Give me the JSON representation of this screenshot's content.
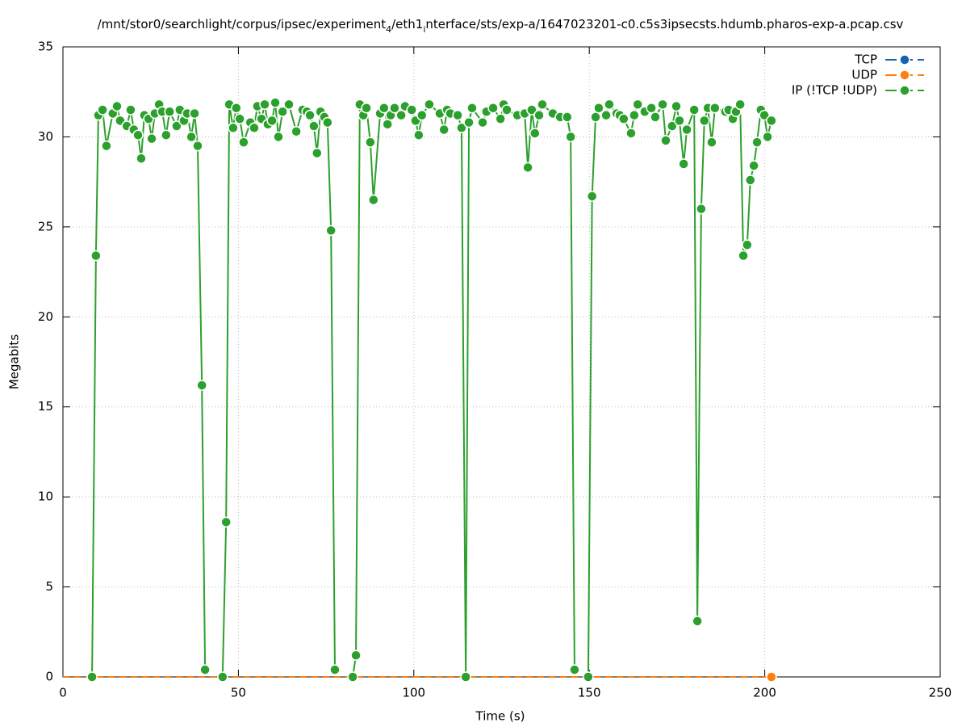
{
  "chart_data": {
    "type": "line",
    "title": [
      {
        "text": "/mnt/stor0/searchlight/corpus/ipsec/experiment",
        "sub": false
      },
      {
        "text": "4",
        "sub": true
      },
      {
        "text": "/eth1",
        "sub": false
      },
      {
        "text": "i",
        "sub": true
      },
      {
        "text": "nterface/sts/exp-a/1647023201-c0.c5s3ipsecsts.hdumb.pharos-exp-a.pcap.csv",
        "sub": false
      }
    ],
    "xlabel": "Time (s)",
    "ylabel": "Megabits",
    "xlim": [
      0,
      250
    ],
    "xticks": [
      0,
      50,
      100,
      150,
      200,
      250
    ],
    "ylim": [
      0,
      35
    ],
    "yticks": [
      0,
      5,
      10,
      15,
      20,
      25,
      30,
      35
    ],
    "grid": true,
    "legend": "top-right",
    "series": [
      {
        "name": "TCP",
        "color": "#1464b4",
        "dashed": true,
        "x": [
          0,
          201.9
        ],
        "values": [
          0,
          0
        ],
        "markers": "last"
      },
      {
        "name": "UDP",
        "color": "#ff7f0e",
        "dashed": true,
        "x": [
          0,
          201.9
        ],
        "values": [
          0,
          0
        ],
        "markers": "last"
      },
      {
        "name": "IP (!TCP  !UDP)",
        "color": "#2ca02c",
        "dashed": false,
        "markers": "all",
        "x": [
          8.3,
          9.4,
          10.1,
          11.3,
          12.4,
          14.2,
          15.4,
          16.3,
          18.2,
          19.3,
          20.2,
          21.4,
          22.3,
          23.2,
          24.4,
          25.3,
          26.2,
          27.4,
          28.3,
          29.4,
          30.4,
          32.4,
          33.3,
          34.5,
          35.4,
          36.6,
          37.5,
          38.4,
          39.6,
          40.5,
          null,
          45.5,
          46.5,
          47.4,
          48.5,
          49.4,
          50.4,
          51.5,
          53.4,
          54.5,
          55.4,
          56.6,
          57.5,
          58.4,
          59.6,
          60.5,
          61.4,
          62.6,
          64.4,
          66.5,
          68.3,
          69.5,
          70.4,
          71.5,
          72.4,
          73.4,
          74.5,
          75.4,
          76.4,
          77.5,
          null,
          82.6,
          83.5,
          84.6,
          85.6,
          86.5,
          87.6,
          88.5,
          90.4,
          91.5,
          92.5,
          93.4,
          94.5,
          96.4,
          97.5,
          99.4,
          100.5,
          101.4,
          102.3,
          104.4,
          107.4,
          108.6,
          109.5,
          110.4,
          112.5,
          113.6,
          114.8,
          115.7,
          116.6,
          119.6,
          120.7,
          122.6,
          124.7,
          125.6,
          126.5,
          129.5,
          131.6,
          132.5,
          133.6,
          134.5,
          135.7,
          136.6,
          139.6,
          141.7,
          143.7,
          144.7,
          145.8,
          null,
          149.7,
          150.8,
          151.8,
          152.7,
          154.8,
          155.7,
          157.8,
          158.7,
          159.8,
          161.9,
          162.8,
          163.8,
          165.8,
          167.7,
          168.8,
          170.9,
          171.8,
          173.6,
          174.8,
          175.7,
          176.9,
          177.8,
          179.9,
          180.8,
          181.9,
          182.8,
          183.8,
          184.9,
          185.8,
          188.8,
          189.7,
          190.9,
          191.8,
          193.0,
          193.9,
          195.0,
          195.9,
          196.9,
          197.8,
          198.9,
          199.9,
          200.8,
          201.9
        ],
        "values": [
          0,
          23.4,
          31.2,
          31.5,
          29.5,
          31.3,
          31.7,
          30.9,
          30.6,
          31.5,
          30.4,
          30.1,
          28.8,
          31.2,
          31.0,
          29.9,
          31.3,
          31.8,
          31.4,
          30.1,
          31.4,
          30.6,
          31.5,
          30.9,
          31.3,
          30.0,
          31.3,
          29.5,
          16.2,
          0.4,
          null,
          0,
          8.6,
          31.8,
          30.5,
          31.6,
          31.0,
          29.7,
          30.8,
          30.5,
          31.7,
          31.0,
          31.8,
          30.7,
          30.9,
          31.9,
          30.0,
          31.4,
          31.8,
          30.3,
          31.5,
          31.4,
          31.2,
          30.6,
          29.1,
          31.4,
          31.1,
          30.8,
          24.8,
          0.4,
          null,
          0,
          1.2,
          31.8,
          31.2,
          31.6,
          29.7,
          26.5,
          31.3,
          31.6,
          30.7,
          31.2,
          31.6,
          31.2,
          31.7,
          31.5,
          30.9,
          30.1,
          31.2,
          31.8,
          31.3,
          30.4,
          31.5,
          31.3,
          31.2,
          30.5,
          0,
          30.8,
          31.6,
          30.8,
          31.4,
          31.6,
          31.0,
          31.8,
          31.5,
          31.2,
          31.3,
          28.3,
          31.5,
          30.2,
          31.2,
          31.8,
          31.3,
          31.1,
          31.1,
          30.0,
          0.4,
          null,
          0,
          26.7,
          31.1,
          31.6,
          31.2,
          31.8,
          31.3,
          31.2,
          31.0,
          30.2,
          31.2,
          31.8,
          31.4,
          31.6,
          31.1,
          31.8,
          29.8,
          30.6,
          31.7,
          30.9,
          28.5,
          30.4,
          31.5,
          3.1,
          26.0,
          30.9,
          31.6,
          29.7,
          31.6,
          31.4,
          31.5,
          31.0,
          31.4,
          31.8,
          23.4,
          24.0,
          27.6,
          28.4,
          29.7,
          31.5,
          31.2,
          30.0,
          30.9
        ]
      }
    ]
  }
}
